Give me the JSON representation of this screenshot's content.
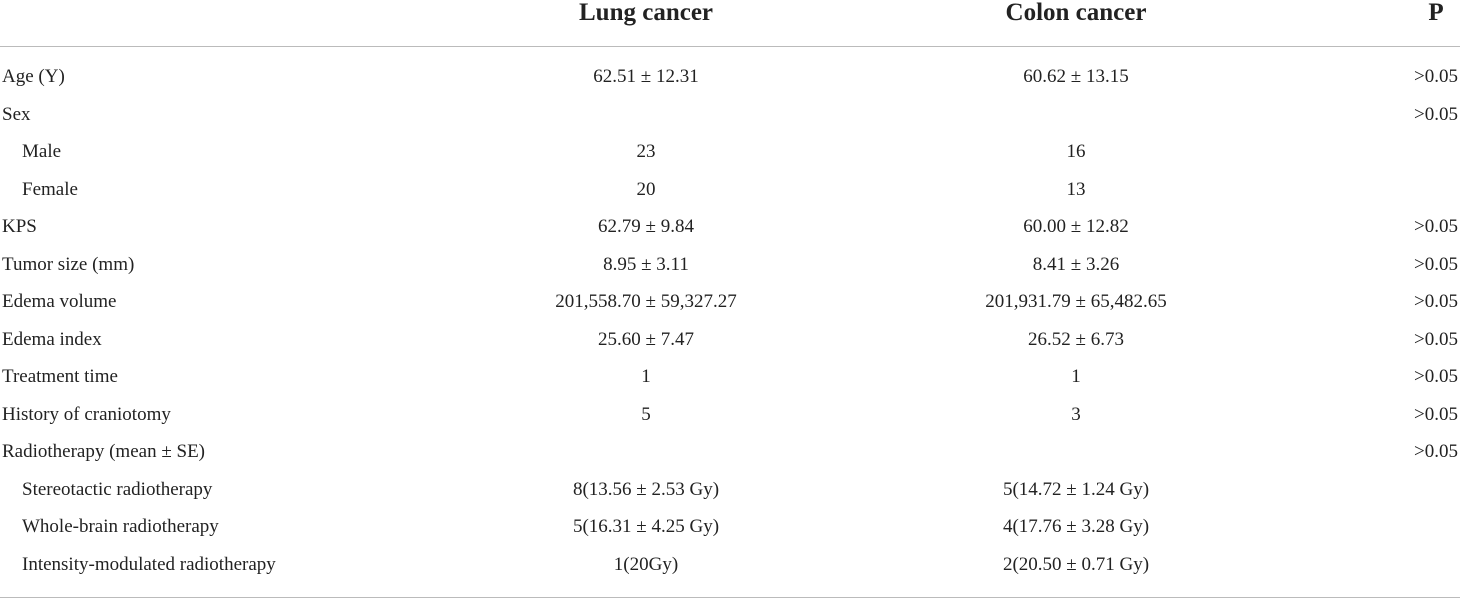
{
  "table": {
    "header": [
      "Lung cancer",
      "Colon cancer",
      "P"
    ],
    "rows": [
      {
        "cells": [
          "Age (Y)",
          "62.51 ± 12.31",
          "60.62 ± 13.15",
          ">0.05"
        ],
        "indent": false
      },
      {
        "cells": [
          "Sex",
          null,
          null,
          ">0.05"
        ],
        "indent": false
      },
      {
        "cells": [
          "Male",
          "23",
          "16",
          null
        ],
        "indent": true
      },
      {
        "cells": [
          "Female",
          "20",
          "13",
          null
        ],
        "indent": true
      },
      {
        "cells": [
          "KPS",
          "62.79 ± 9.84",
          "60.00 ± 12.82",
          ">0.05"
        ],
        "indent": false
      },
      {
        "cells": [
          "Tumor size (mm)",
          "8.95 ± 3.11",
          "8.41 ± 3.26",
          ">0.05"
        ],
        "indent": false
      },
      {
        "cells": [
          "Edema volume",
          "201,558.70 ± 59,327.27",
          "201,931.79 ± 65,482.65",
          ">0.05"
        ],
        "indent": false
      },
      {
        "cells": [
          "Edema index",
          "25.60 ± 7.47",
          "26.52 ± 6.73",
          ">0.05"
        ],
        "indent": false
      },
      {
        "cells": [
          "Treatment time",
          "1",
          "1",
          ">0.05"
        ],
        "indent": false
      },
      {
        "cells": [
          "History of craniotomy",
          "5",
          "3",
          ">0.05"
        ],
        "indent": false
      },
      {
        "cells": [
          "Radiotherapy (mean ± SE)",
          null,
          null,
          ">0.05"
        ],
        "indent": false
      },
      {
        "cells": [
          "Stereotactic radiotherapy",
          "8(13.56 ± 2.53 Gy)",
          "5(14.72 ± 1.24 Gy)",
          null
        ],
        "indent": true
      },
      {
        "cells": [
          "Whole-brain radiotherapy",
          "5(16.31 ± 4.25 Gy)",
          "4(17.76 ± 3.28 Gy)",
          null
        ],
        "indent": true
      },
      {
        "cells": [
          "Intensity-modulated radiotherapy",
          "1(20Gy)",
          "2(20.50 ± 0.71 Gy)",
          null
        ],
        "indent": true
      }
    ]
  }
}
